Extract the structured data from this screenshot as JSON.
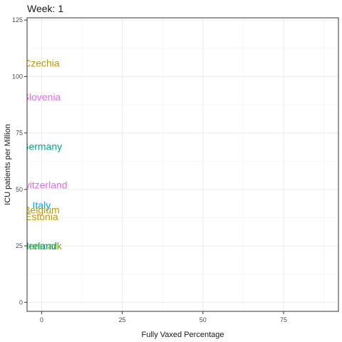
{
  "chart_data": {
    "type": "scatter",
    "title": "Week: 1",
    "xlabel": "Fully Vaxed Percentage",
    "ylabel": "ICU patients per Million",
    "xlim": [
      -4.5,
      92
    ],
    "ylim": [
      -4,
      126
    ],
    "x_ticks": [
      0,
      25,
      50,
      75
    ],
    "x_tick_labels": [
      "0",
      "25",
      "50",
      "75"
    ],
    "y_ticks": [
      0,
      25,
      50,
      75,
      100,
      125
    ],
    "y_tick_labels": [
      "0",
      "25",
      "50",
      "75",
      "100",
      "125"
    ],
    "grid": true,
    "legend": "none",
    "points": [
      {
        "label": "Czechia",
        "x": 0,
        "y": 106,
        "color": "#C49A00"
      },
      {
        "label": "Slovenia",
        "x": 0,
        "y": 91,
        "color": "#E76BF3"
      },
      {
        "label": "Germany",
        "x": 0,
        "y": 69,
        "color": "#00A987"
      },
      {
        "label": "Switzerland",
        "x": 0,
        "y": 52,
        "color": "#E76BF3"
      },
      {
        "label": "Italy",
        "x": 0,
        "y": 43,
        "color": "#00A5FF"
      },
      {
        "label": "Belgium",
        "x": 0,
        "y": 41,
        "color": "#C49A00"
      },
      {
        "label": "Estonia",
        "x": 0,
        "y": 38,
        "color": "#C49A00"
      },
      {
        "label": "Denmark",
        "x": 0,
        "y": 25,
        "color": "#7CAE00"
      },
      {
        "label": "Ireland",
        "x": 0,
        "y": 25,
        "color": "#00A987"
      }
    ]
  }
}
